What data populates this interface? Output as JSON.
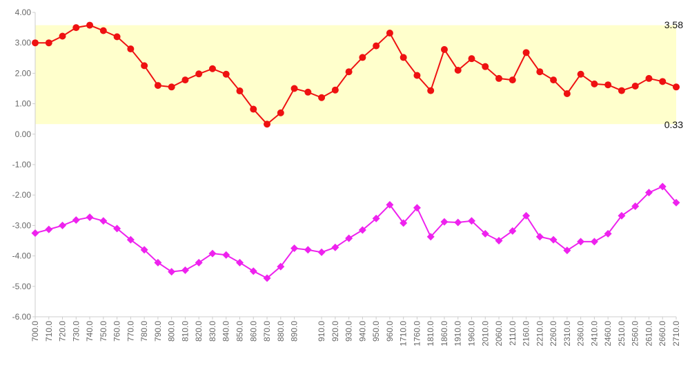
{
  "chart_data": {
    "type": "line",
    "title": "",
    "xlabel": "",
    "ylabel": "",
    "ylim": [
      -6,
      4
    ],
    "yticks": [
      4,
      3,
      2,
      1,
      0,
      -1,
      -2,
      -3,
      -4,
      -5,
      -6
    ],
    "ytick_labels": [
      "4.00",
      "3.00",
      "2.00",
      "1.00",
      "0.00",
      "-1.00",
      "-2.00",
      "-3.00",
      "-4.00",
      "-5.00",
      "-6.00"
    ],
    "categories": [
      "700.0",
      "710.0",
      "720.0",
      "730.0",
      "740.0",
      "750.0",
      "760.0",
      "770.0",
      "780.0",
      "790.0",
      "800.0",
      "810.0",
      "820.0",
      "830.0",
      "840.0",
      "850.0",
      "860.0",
      "870.0",
      "880.0",
      "890.0",
      "910.0",
      "910.0",
      "920.0",
      "930.0",
      "940.0",
      "950.0",
      "960.0",
      "1710.0",
      "1760.0",
      "1810.0",
      "1860.0",
      "1910.0",
      "1960.0",
      "2010.0",
      "2060.0",
      "2110.0",
      "2160.0",
      "2210.0",
      "2260.0",
      "2310.0",
      "2360.0",
      "2410.0",
      "2460.0",
      "2510.0",
      "2560.0",
      "2610.0",
      "2660.0",
      "2710.0"
    ],
    "x_label_indices": [
      0,
      1,
      2,
      3,
      4,
      5,
      6,
      7,
      8,
      9,
      10,
      11,
      12,
      13,
      14,
      15,
      16,
      17,
      18,
      19,
      21,
      22,
      23,
      24,
      25,
      26,
      27,
      28,
      29,
      30,
      31,
      32,
      33,
      34,
      35,
      36,
      37,
      38,
      39,
      40,
      41,
      42,
      43,
      44,
      45,
      46,
      47
    ],
    "band": {
      "low": 0.33,
      "high": 3.58,
      "color": "#ffffcc",
      "low_label": "0.33",
      "high_label": "3.58"
    },
    "series": [
      {
        "color": "#ee1111",
        "marker": "circle",
        "values": [
          3.0,
          3.0,
          3.22,
          3.5,
          3.58,
          3.4,
          3.2,
          2.8,
          2.25,
          1.6,
          1.55,
          1.78,
          1.98,
          2.15,
          1.97,
          1.42,
          0.82,
          0.33,
          0.7,
          1.5,
          1.38,
          1.2,
          1.45,
          2.05,
          2.52,
          2.9,
          3.32,
          2.52,
          1.93,
          1.43,
          2.78,
          2.1,
          2.48,
          2.22,
          1.83,
          1.78,
          2.68,
          2.05,
          1.78,
          1.33,
          1.97,
          1.65,
          1.62,
          1.43,
          1.58,
          1.83,
          1.73,
          1.55
        ]
      },
      {
        "color": "#ee22ee",
        "marker": "diamond",
        "values": [
          -3.25,
          -3.13,
          -3.0,
          -2.82,
          -2.73,
          -2.85,
          -3.1,
          -3.47,
          -3.8,
          -4.22,
          -4.52,
          -4.47,
          -4.22,
          -3.92,
          -3.97,
          -4.22,
          -4.5,
          -4.73,
          -4.35,
          -3.75,
          -3.8,
          -3.88,
          -3.72,
          -3.42,
          -3.15,
          -2.77,
          -2.32,
          -2.92,
          -2.42,
          -3.37,
          -2.88,
          -2.9,
          -2.85,
          -3.27,
          -3.5,
          -3.18,
          -2.68,
          -3.37,
          -3.47,
          -3.82,
          -3.53,
          -3.53,
          -3.27,
          -2.68,
          -2.37,
          -1.92,
          -1.72,
          -2.25
        ]
      }
    ]
  }
}
